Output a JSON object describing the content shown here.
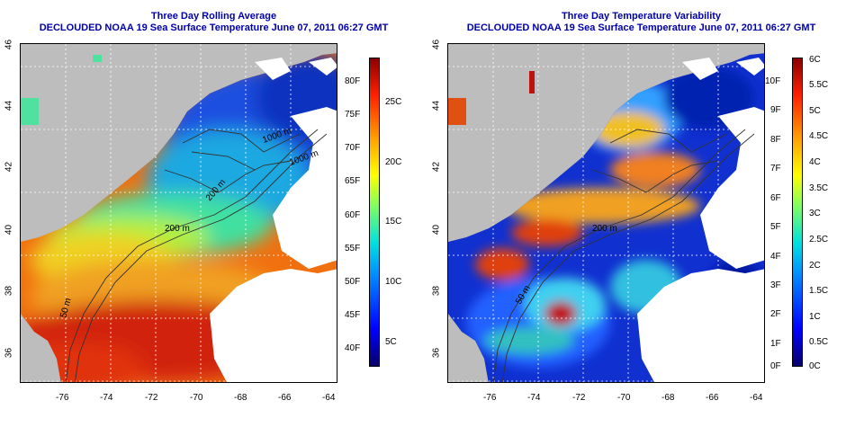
{
  "left": {
    "title_line1": "Three Day Rolling Average",
    "title_line2": "DECLOUDED NOAA 19 Sea Surface Temperature June 07, 2011 06:27 GMT",
    "lat_ticks": [
      "46",
      "44",
      "42",
      "40",
      "38",
      "36"
    ],
    "lon_ticks": [
      "-76",
      "-74",
      "-72",
      "-70",
      "-68",
      "-66",
      "-64"
    ],
    "contours": [
      "50 m",
      "200 m",
      "200 m",
      "1000 m",
      "1000 m"
    ],
    "cbar_f": [
      "80F",
      "75F",
      "70F",
      "65F",
      "60F",
      "55F",
      "50F",
      "45F",
      "40F"
    ],
    "cbar_c": [
      "25C",
      "20C",
      "15C",
      "10C",
      "5C"
    ]
  },
  "right": {
    "title_line1": "Three Day Temperature Variability",
    "title_line2": "DECLOUDED NOAA 19 Sea Surface Temperature June 07, 2011 06:27 GMT",
    "lat_ticks": [
      "46",
      "44",
      "42",
      "40",
      "38",
      "36"
    ],
    "lon_ticks": [
      "-76",
      "-74",
      "-72",
      "-70",
      "-68",
      "-66",
      "-64"
    ],
    "contours": [
      "50 m",
      "200 m"
    ],
    "cbar_f": [
      "10F",
      "9F",
      "8F",
      "7F",
      "6F",
      "5F",
      "4F",
      "3F",
      "2F",
      "1F",
      "0F"
    ],
    "cbar_c": [
      "6C",
      "5.5C",
      "5C",
      "4.5C",
      "4C",
      "3.5C",
      "3C",
      "2.5C",
      "2C",
      "1.5C",
      "1C",
      "0.5C",
      "0C"
    ]
  },
  "colors": {
    "land": "#bdbdbd",
    "cloud": "#ffffff",
    "title": "#0000aa"
  }
}
